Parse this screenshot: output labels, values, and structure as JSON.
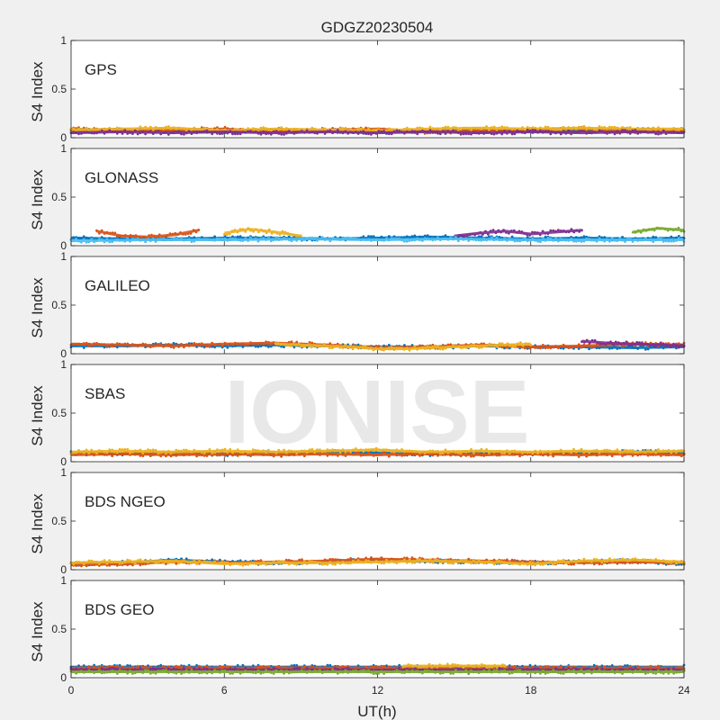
{
  "figure": {
    "title": "GDGZ20230504",
    "xlabel": "UT(h)",
    "watermark": "IONISE"
  },
  "chart_data": {
    "type": "scatter",
    "title": "GDGZ20230504",
    "xlabel": "UT(h)",
    "ylabel": "S4 Index",
    "xlim": [
      0,
      24
    ],
    "ylim": [
      0,
      1
    ],
    "xticks": [
      0,
      6,
      12,
      18,
      24
    ],
    "yticks": [
      0,
      0.5,
      1
    ],
    "grid": false,
    "series_colors": [
      "#0072bd",
      "#d95319",
      "#edb120",
      "#7e2f8e",
      "#77ac30",
      "#4dbeee",
      "#a2142f"
    ],
    "panels": [
      {
        "name": "GPS",
        "y_range_observed": [
          0.02,
          0.18
        ],
        "series": [
          {
            "x": [
              0,
              2,
              4,
              6,
              8,
              10,
              12,
              14,
              16,
              18,
              20,
              22,
              24
            ],
            "y": [
              0.07,
              0.08,
              0.07,
              0.06,
              0.08,
              0.07,
              0.06,
              0.07,
              0.08,
              0.06,
              0.07,
              0.08,
              0.07
            ]
          },
          {
            "x": [
              0,
              2,
              4,
              6,
              8,
              10,
              12,
              14,
              16,
              18,
              20,
              22,
              24
            ],
            "y": [
              0.09,
              0.07,
              0.08,
              0.09,
              0.06,
              0.08,
              0.09,
              0.06,
              0.07,
              0.08,
              0.09,
              0.06,
              0.08
            ]
          },
          {
            "x": [
              0,
              2,
              4,
              6,
              8,
              10,
              12,
              14,
              16,
              18,
              20,
              22,
              24
            ],
            "y": [
              0.08,
              0.09,
              0.1,
              0.07,
              0.09,
              0.08,
              0.07,
              0.09,
              0.1,
              0.09,
              0.1,
              0.09,
              0.09
            ]
          },
          {
            "x": [
              0,
              2,
              4,
              6,
              8,
              10,
              12,
              14,
              16,
              18,
              20,
              22,
              24
            ],
            "y": [
              0.05,
              0.06,
              0.05,
              0.06,
              0.05,
              0.06,
              0.05,
              0.06,
              0.05,
              0.06,
              0.05,
              0.06,
              0.05
            ]
          }
        ]
      },
      {
        "name": "GLONASS",
        "y_range_observed": [
          0.03,
          0.2
        ],
        "series": [
          {
            "x": [
              0,
              2,
              4,
              6,
              8,
              10,
              12,
              14,
              16,
              18,
              20,
              22,
              24
            ],
            "y": [
              0.08,
              0.07,
              0.07,
              0.08,
              0.08,
              0.07,
              0.08,
              0.09,
              0.08,
              0.07,
              0.08,
              0.07,
              0.08
            ]
          },
          {
            "x": [
              1,
              2,
              3,
              4,
              5
            ],
            "y": [
              0.15,
              0.1,
              0.09,
              0.11,
              0.16
            ]
          },
          {
            "x": [
              6,
              7,
              8,
              9
            ],
            "y": [
              0.13,
              0.17,
              0.14,
              0.1
            ]
          },
          {
            "x": [
              15,
              16,
              17,
              18,
              19,
              20
            ],
            "y": [
              0.1,
              0.13,
              0.15,
              0.12,
              0.14,
              0.16
            ]
          },
          {
            "x": [
              22,
              23,
              24
            ],
            "y": [
              0.14,
              0.18,
              0.16
            ]
          },
          {
            "x": [
              0,
              3,
              6,
              9,
              12,
              15,
              18,
              21,
              24
            ],
            "y": [
              0.05,
              0.06,
              0.06,
              0.07,
              0.06,
              0.07,
              0.06,
              0.06,
              0.06
            ]
          }
        ]
      },
      {
        "name": "GALILEO",
        "y_range_observed": [
          0.03,
          0.2
        ],
        "series": [
          {
            "x": [
              0,
              2,
              4,
              6,
              8,
              10,
              12,
              14,
              16,
              18,
              20,
              22,
              24
            ],
            "y": [
              0.08,
              0.08,
              0.09,
              0.08,
              0.09,
              0.08,
              0.07,
              0.07,
              0.08,
              0.07,
              0.07,
              0.06,
              0.07
            ]
          },
          {
            "x": [
              0,
              2,
              4,
              6,
              8,
              10,
              12,
              14,
              16,
              18,
              20,
              22,
              24
            ],
            "y": [
              0.1,
              0.09,
              0.08,
              0.1,
              0.11,
              0.09,
              0.06,
              0.07,
              0.09,
              0.07,
              0.08,
              0.1,
              0.09
            ]
          },
          {
            "x": [
              8,
              9,
              10,
              11,
              12,
              13,
              14,
              15,
              16,
              17,
              18
            ],
            "y": [
              0.1,
              0.09,
              0.08,
              0.07,
              0.05,
              0.05,
              0.06,
              0.07,
              0.08,
              0.09,
              0.1
            ]
          },
          {
            "x": [
              20,
              21,
              22,
              23,
              24
            ],
            "y": [
              0.13,
              0.11,
              0.1,
              0.09,
              0.08
            ]
          }
        ]
      },
      {
        "name": "SBAS",
        "y_range_observed": [
          0.04,
          0.2
        ],
        "series": [
          {
            "x": [
              0,
              2,
              4,
              6,
              8,
              10,
              12,
              14,
              16,
              18,
              20,
              22,
              24
            ],
            "y": [
              0.09,
              0.08,
              0.09,
              0.08,
              0.09,
              0.1,
              0.09,
              0.08,
              0.09,
              0.08,
              0.09,
              0.1,
              0.09
            ]
          },
          {
            "x": [
              0,
              2,
              4,
              6,
              8,
              10,
              12,
              14,
              16,
              18,
              20,
              22,
              24
            ],
            "y": [
              0.07,
              0.08,
              0.07,
              0.08,
              0.07,
              0.08,
              0.07,
              0.08,
              0.07,
              0.08,
              0.07,
              0.08,
              0.07
            ]
          },
          {
            "x": [
              0,
              2,
              4,
              6,
              8,
              10,
              12,
              14,
              16,
              18,
              20,
              22,
              24
            ],
            "y": [
              0.1,
              0.11,
              0.1,
              0.11,
              0.1,
              0.11,
              0.12,
              0.1,
              0.11,
              0.1,
              0.11,
              0.1,
              0.11
            ]
          }
        ]
      },
      {
        "name": "BDS NGEO",
        "y_range_observed": [
          0.03,
          0.25
        ],
        "series": [
          {
            "x": [
              0,
              2,
              4,
              6,
              8,
              10,
              12,
              14,
              16,
              18,
              20,
              22,
              24
            ],
            "y": [
              0.06,
              0.07,
              0.1,
              0.08,
              0.07,
              0.08,
              0.1,
              0.09,
              0.08,
              0.07,
              0.08,
              0.09,
              0.06
            ]
          },
          {
            "x": [
              0,
              2,
              4,
              6,
              8,
              10,
              12,
              14,
              16,
              18,
              20,
              22,
              24
            ],
            "y": [
              0.05,
              0.06,
              0.08,
              0.07,
              0.08,
              0.09,
              0.11,
              0.1,
              0.09,
              0.08,
              0.07,
              0.08,
              0.07
            ]
          },
          {
            "x": [
              0,
              2,
              4,
              6,
              8,
              10,
              12,
              14,
              16,
              18,
              20,
              22,
              24
            ],
            "y": [
              0.07,
              0.08,
              0.09,
              0.06,
              0.07,
              0.07,
              0.08,
              0.09,
              0.08,
              0.06,
              0.09,
              0.1,
              0.08
            ]
          }
        ]
      },
      {
        "name": "BDS GEO",
        "y_range_observed": [
          0.05,
          0.14
        ],
        "series": [
          {
            "x": [
              0,
              4,
              8,
              12,
              16,
              20,
              24
            ],
            "y": [
              0.11,
              0.11,
              0.11,
              0.11,
              0.11,
              0.11,
              0.11
            ]
          },
          {
            "x": [
              0,
              4,
              8,
              12,
              16,
              20,
              24
            ],
            "y": [
              0.1,
              0.1,
              0.1,
              0.1,
              0.1,
              0.1,
              0.1
            ]
          },
          {
            "x": [
              13,
              14,
              15,
              16,
              17
            ],
            "y": [
              0.12,
              0.12,
              0.12,
              0.12,
              0.12
            ]
          },
          {
            "x": [
              0,
              4,
              8,
              12,
              16,
              20,
              24
            ],
            "y": [
              0.08,
              0.08,
              0.08,
              0.08,
              0.08,
              0.08,
              0.08
            ]
          },
          {
            "x": [
              0,
              4,
              8,
              12,
              16,
              20,
              24
            ],
            "y": [
              0.06,
              0.06,
              0.06,
              0.06,
              0.06,
              0.06,
              0.06
            ]
          }
        ]
      }
    ]
  }
}
